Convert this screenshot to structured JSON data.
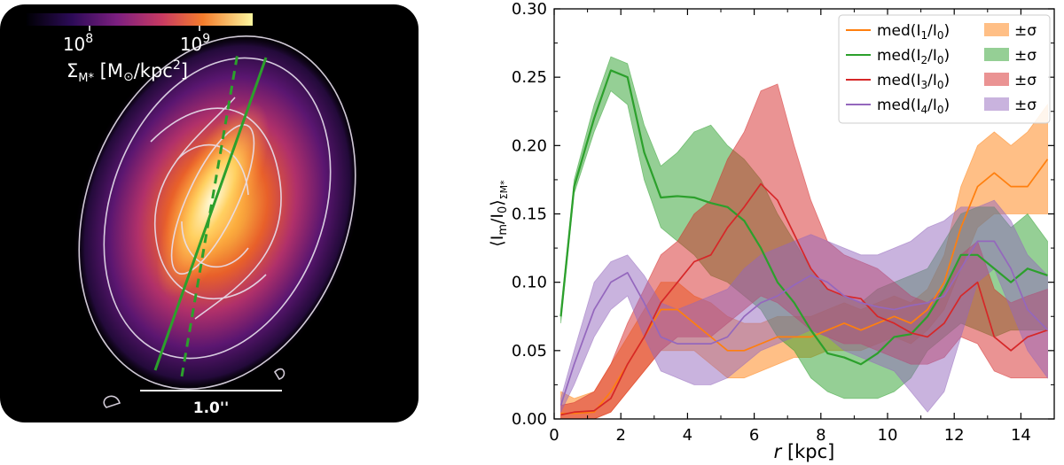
{
  "image_panel": {
    "colorbar_tick_1": "10",
    "colorbar_tick_1_exp": "8",
    "colorbar_tick_2": "10",
    "colorbar_tick_2_exp": "9",
    "colorbar_label_a": "Σ",
    "colorbar_label_sub": "M*",
    "colorbar_label_b": " [M",
    "colorbar_label_sun": "⊙",
    "colorbar_label_c": "/kpc",
    "colorbar_label_sup": "2",
    "colorbar_label_d": "]",
    "scalebar_label": "1.0''",
    "colors": {
      "background": "#000000",
      "line": "#2ca02c",
      "contour": "#e8e0ee"
    }
  },
  "chart_data": {
    "type": "line",
    "xlabel_italic": "r",
    "xlabel_rest": " [kpc]",
    "ylabel_main": "⟨I",
    "ylabel_m": "m",
    "ylabel_mid": "/I",
    "ylabel_zero": "0",
    "ylabel_end": "⟩",
    "ylabel_sub": "ΣM*",
    "xlim": [
      0,
      15
    ],
    "ylim": [
      0,
      0.3
    ],
    "xticks": [
      0,
      2,
      4,
      6,
      8,
      10,
      12,
      14
    ],
    "yticks": [
      0.0,
      0.05,
      0.1,
      0.15,
      0.2,
      0.25,
      0.3
    ],
    "ytick_labels": [
      "0.00",
      "0.05",
      "0.10",
      "0.15",
      "0.20",
      "0.25",
      "0.30"
    ],
    "x": [
      0.2,
      0.6,
      1.2,
      1.7,
      2.2,
      2.7,
      3.2,
      3.7,
      4.2,
      4.7,
      5.2,
      5.7,
      6.2,
      6.7,
      7.2,
      7.7,
      8.2,
      8.7,
      9.2,
      9.7,
      10.2,
      10.7,
      11.2,
      11.7,
      12.2,
      12.7,
      13.2,
      13.7,
      14.2,
      14.8
    ],
    "series": [
      {
        "name_pre": "med(I",
        "name_idx": "1",
        "name_post": "/I",
        "name_zero": "0",
        "name_end": ")",
        "band_label": "±σ",
        "color": "#ff7f0e",
        "median": [
          0.004,
          0.004,
          0.005,
          0.02,
          0.04,
          0.06,
          0.08,
          0.08,
          0.07,
          0.06,
          0.05,
          0.05,
          0.055,
          0.06,
          0.06,
          0.06,
          0.065,
          0.07,
          0.065,
          0.07,
          0.075,
          0.07,
          0.08,
          0.1,
          0.14,
          0.17,
          0.18,
          0.17,
          0.17,
          0.19
        ],
        "lower": [
          0.0,
          0.0,
          0.0,
          0.005,
          0.02,
          0.035,
          0.05,
          0.05,
          0.05,
          0.04,
          0.03,
          0.03,
          0.035,
          0.04,
          0.045,
          0.045,
          0.05,
          0.05,
          0.05,
          0.055,
          0.06,
          0.055,
          0.065,
          0.08,
          0.11,
          0.14,
          0.15,
          0.15,
          0.15,
          0.15
        ],
        "upper": [
          0.02,
          0.015,
          0.02,
          0.04,
          0.06,
          0.08,
          0.1,
          0.1,
          0.09,
          0.085,
          0.075,
          0.07,
          0.07,
          0.075,
          0.075,
          0.075,
          0.08,
          0.085,
          0.08,
          0.085,
          0.09,
          0.085,
          0.095,
          0.12,
          0.17,
          0.2,
          0.21,
          0.2,
          0.21,
          0.23
        ]
      },
      {
        "name_pre": "med(I",
        "name_idx": "2",
        "name_post": "/I",
        "name_zero": "0",
        "name_end": ")",
        "band_label": "±σ",
        "color": "#2ca02c",
        "median": [
          0.075,
          0.17,
          0.22,
          0.255,
          0.25,
          0.195,
          0.162,
          0.163,
          0.162,
          0.158,
          0.155,
          0.145,
          0.125,
          0.1,
          0.085,
          0.065,
          0.048,
          0.045,
          0.04,
          0.048,
          0.06,
          0.062,
          0.075,
          0.095,
          0.12,
          0.12,
          0.11,
          0.1,
          0.11,
          0.105
        ],
        "lower": [
          0.07,
          0.165,
          0.21,
          0.24,
          0.23,
          0.175,
          0.14,
          0.13,
          0.12,
          0.105,
          0.1,
          0.09,
          0.08,
          0.06,
          0.05,
          0.03,
          0.02,
          0.015,
          0.015,
          0.015,
          0.02,
          0.03,
          0.05,
          0.06,
          0.07,
          0.065,
          0.06,
          0.065,
          0.065,
          0.065
        ],
        "upper": [
          0.08,
          0.175,
          0.23,
          0.265,
          0.26,
          0.215,
          0.185,
          0.195,
          0.21,
          0.215,
          0.2,
          0.19,
          0.175,
          0.15,
          0.13,
          0.11,
          0.095,
          0.09,
          0.085,
          0.095,
          0.1,
          0.105,
          0.11,
          0.13,
          0.15,
          0.155,
          0.155,
          0.14,
          0.15,
          0.13
        ]
      },
      {
        "name_pre": "med(I",
        "name_idx": "3",
        "name_post": "/I",
        "name_zero": "0",
        "name_end": ")",
        "band_label": "±σ",
        "color": "#d62728",
        "median": [
          0.003,
          0.005,
          0.006,
          0.015,
          0.04,
          0.06,
          0.085,
          0.1,
          0.115,
          0.12,
          0.14,
          0.155,
          0.172,
          0.16,
          0.135,
          0.11,
          0.095,
          0.09,
          0.088,
          0.075,
          0.07,
          0.063,
          0.06,
          0.07,
          0.09,
          0.1,
          0.06,
          0.05,
          0.06,
          0.065
        ],
        "lower": [
          0.0,
          0.0,
          0.0,
          0.005,
          0.02,
          0.035,
          0.05,
          0.06,
          0.06,
          0.06,
          0.07,
          0.08,
          0.09,
          0.085,
          0.075,
          0.065,
          0.06,
          0.055,
          0.055,
          0.05,
          0.045,
          0.04,
          0.04,
          0.045,
          0.06,
          0.055,
          0.035,
          0.03,
          0.03,
          0.03
        ],
        "upper": [
          0.01,
          0.012,
          0.02,
          0.04,
          0.07,
          0.095,
          0.12,
          0.13,
          0.15,
          0.16,
          0.19,
          0.21,
          0.24,
          0.245,
          0.2,
          0.16,
          0.13,
          0.12,
          0.115,
          0.11,
          0.1,
          0.09,
          0.085,
          0.095,
          0.12,
          0.13,
          0.095,
          0.085,
          0.09,
          0.095
        ]
      },
      {
        "name_pre": "med(I",
        "name_idx": "4",
        "name_post": "/I",
        "name_zero": "0",
        "name_end": ")",
        "band_label": "±σ",
        "color": "#9467bd",
        "median": [
          0.01,
          0.04,
          0.08,
          0.1,
          0.107,
          0.085,
          0.06,
          0.055,
          0.055,
          0.055,
          0.06,
          0.075,
          0.085,
          0.09,
          0.098,
          0.105,
          0.1,
          0.09,
          0.085,
          0.082,
          0.08,
          0.083,
          0.085,
          0.09,
          0.11,
          0.13,
          0.13,
          0.11,
          0.08,
          0.065
        ],
        "lower": [
          0.005,
          0.025,
          0.06,
          0.08,
          0.09,
          0.06,
          0.035,
          0.03,
          0.025,
          0.025,
          0.03,
          0.04,
          0.05,
          0.055,
          0.06,
          0.065,
          0.06,
          0.05,
          0.045,
          0.04,
          0.035,
          0.02,
          0.005,
          0.02,
          0.06,
          0.1,
          0.11,
          0.08,
          0.05,
          0.03
        ],
        "upper": [
          0.015,
          0.05,
          0.1,
          0.115,
          0.12,
          0.105,
          0.085,
          0.08,
          0.085,
          0.09,
          0.095,
          0.11,
          0.12,
          0.125,
          0.13,
          0.135,
          0.13,
          0.125,
          0.12,
          0.12,
          0.125,
          0.13,
          0.14,
          0.145,
          0.155,
          0.155,
          0.16,
          0.145,
          0.12,
          0.105
        ]
      }
    ]
  }
}
